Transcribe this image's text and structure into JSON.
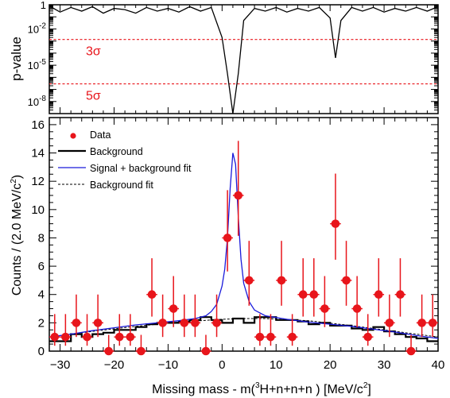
{
  "chart_data": [
    {
      "type": "line",
      "panel": "top",
      "ylabel": "p-value",
      "yscale": "log",
      "ylim": [
        1e-09,
        1
      ],
      "xlim": [
        -32,
        40
      ],
      "yticks": [
        {
          "v": 1,
          "mant": "1",
          "exp": ""
        },
        {
          "v": 0.01,
          "mant": "10",
          "exp": "-2"
        },
        {
          "v": 1e-05,
          "mant": "10",
          "exp": "-5"
        },
        {
          "v": 1e-08,
          "mant": "10",
          "exp": "-8"
        }
      ],
      "sigma_lines": [
        {
          "label": "3σ",
          "p": 0.00135,
          "color": "#e8151b"
        },
        {
          "label": "5σ",
          "p": 2.87e-07,
          "color": "#e8151b"
        }
      ],
      "x": [
        -32,
        -30,
        -28,
        -26,
        -24,
        -22,
        -20,
        -18,
        -16,
        -14,
        -12,
        -10,
        -8,
        -6,
        -4,
        -2,
        0,
        1,
        2,
        3,
        4,
        6,
        8,
        10,
        12,
        14,
        16,
        18,
        20,
        21,
        22,
        24,
        26,
        28,
        30,
        32,
        34,
        36,
        38,
        40
      ],
      "y": [
        0.8,
        0.25,
        0.6,
        0.3,
        0.7,
        0.2,
        0.5,
        0.4,
        0.2,
        0.6,
        0.3,
        0.5,
        0.25,
        0.7,
        0.3,
        0.6,
        0.002,
        2e-06,
        1e-09,
        2e-06,
        0.05,
        0.5,
        0.3,
        0.6,
        0.25,
        0.5,
        0.3,
        0.6,
        0.08,
        4e-05,
        0.05,
        0.6,
        0.3,
        0.6,
        0.25,
        0.5,
        0.3,
        0.6,
        0.3,
        0.7
      ],
      "grid": false
    },
    {
      "type": "scatter",
      "panel": "bottom",
      "xlabel": {
        "pre": "Missing mass - m(",
        "sup": "3",
        "mid": "H+n+n+n ) [MeV/c",
        "sup2": "2",
        "post": "]"
      },
      "ylabel": {
        "pre": "Counts / (2.0 MeV/c",
        "sup": "2",
        "post": ")"
      },
      "xlim": [
        -32,
        40
      ],
      "ylim": [
        0,
        16.5
      ],
      "xticks": [
        -30,
        -20,
        -10,
        0,
        10,
        20,
        30,
        40
      ],
      "yticks": [
        0,
        2,
        4,
        6,
        8,
        10,
        12,
        14,
        16
      ],
      "legend_position": "top-left",
      "legend": [
        {
          "label": "Data",
          "kind": "marker",
          "color": "#e8151b"
        },
        {
          "label": "Background",
          "kind": "line",
          "color": "#000000"
        },
        {
          "label": "Signal + background fit",
          "kind": "line",
          "color": "#1a1adb"
        },
        {
          "label": "Background fit",
          "kind": "dashed",
          "color": "#000000"
        }
      ],
      "data_points": {
        "x": [
          -31,
          -29,
          -27,
          -25,
          -23,
          -21,
          -19,
          -17,
          -15,
          -13,
          -11,
          -9,
          -7,
          -5,
          -3,
          -1,
          1,
          3,
          5,
          7,
          9,
          11,
          13,
          15,
          17,
          19,
          21,
          23,
          25,
          27,
          29,
          31,
          33,
          35,
          37,
          39
        ],
        "y": [
          1,
          1,
          2,
          1,
          2,
          0,
          1,
          1,
          0,
          4,
          2,
          3,
          2,
          2,
          0,
          2,
          8,
          11,
          5,
          1,
          1,
          5,
          1,
          4,
          4,
          3,
          9,
          5,
          3,
          1,
          4,
          2,
          4,
          0,
          2,
          2
        ]
      },
      "background_hist": {
        "edges": [
          -32,
          -30,
          -28,
          -26,
          -24,
          -22,
          -20,
          -18,
          -16,
          -14,
          -12,
          -10,
          -8,
          -6,
          -4,
          -2,
          0,
          2,
          4,
          6,
          8,
          10,
          12,
          14,
          16,
          18,
          20,
          22,
          24,
          26,
          28,
          30,
          32,
          34,
          36,
          38,
          40
        ],
        "values": [
          0.7,
          0.7,
          1.2,
          1.0,
          1.2,
          1.3,
          1.5,
          1.5,
          1.7,
          1.9,
          2.0,
          2.0,
          2.1,
          2.2,
          2.4,
          2.2,
          2.0,
          2.3,
          2.0,
          2.4,
          2.4,
          2.2,
          2.2,
          2.1,
          1.9,
          2.0,
          1.8,
          1.8,
          1.6,
          1.5,
          1.7,
          1.4,
          1.2,
          1.0,
          0.9,
          0.7
        ]
      },
      "signal_plus_background_fit": {
        "color": "#1a1adb",
        "x": [
          -32,
          -28,
          -24,
          -20,
          -16,
          -12,
          -8,
          -5,
          -3,
          -2,
          -1,
          0,
          0.5,
          1,
          1.5,
          2,
          2.5,
          3,
          3.5,
          4,
          5,
          6,
          8,
          12,
          16,
          20,
          24,
          28,
          32,
          36,
          40
        ],
        "y": [
          1.0,
          1.2,
          1.45,
          1.65,
          1.85,
          2.0,
          2.15,
          2.3,
          2.5,
          2.8,
          3.3,
          4.6,
          5.8,
          8.0,
          11.5,
          14.0,
          13.2,
          9.5,
          6.5,
          4.8,
          3.5,
          2.9,
          2.5,
          2.25,
          2.05,
          1.9,
          1.75,
          1.55,
          1.35,
          1.1,
          0.9
        ]
      },
      "background_fit": {
        "color": "#000000",
        "x": [
          -32,
          -24,
          -16,
          -8,
          0,
          4,
          8,
          16,
          24,
          32,
          40
        ],
        "y": [
          1.0,
          1.4,
          1.75,
          2.05,
          2.25,
          2.3,
          2.3,
          2.15,
          1.8,
          1.4,
          1.0
        ]
      }
    }
  ]
}
